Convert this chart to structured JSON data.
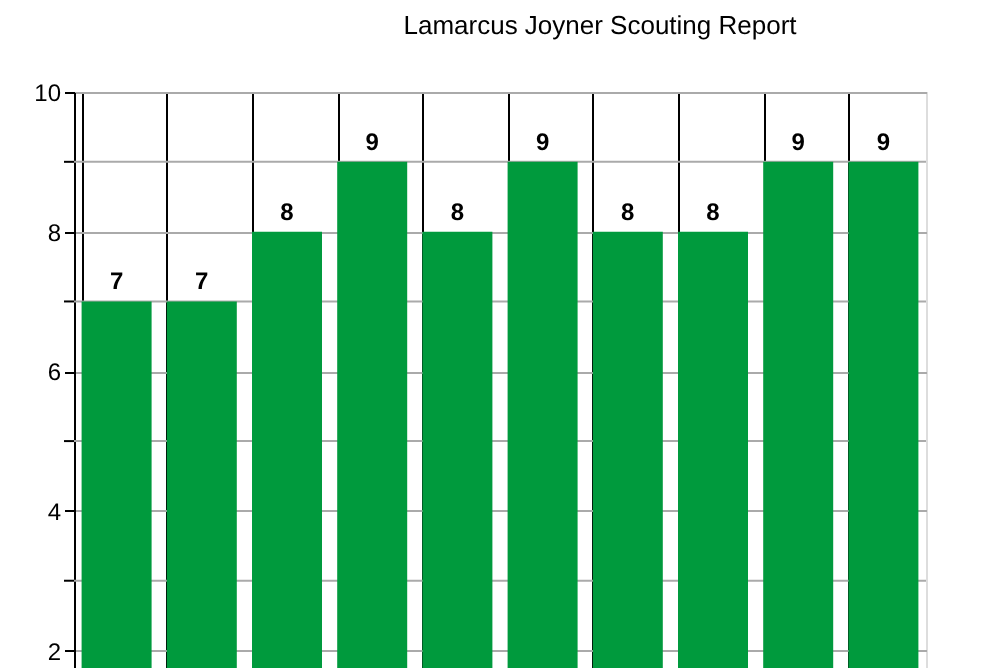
{
  "chart_data": {
    "type": "bar",
    "title": "Lamarcus Joyner Scouting Report",
    "categories": [
      null,
      null,
      null,
      null,
      null,
      null,
      null,
      null,
      null,
      null
    ],
    "values": [
      7,
      7,
      8,
      9,
      8,
      9,
      8,
      8,
      9,
      9
    ],
    "color": "#009a3d",
    "ylim": [
      1.75,
      10
    ],
    "yticks": [
      2,
      {
        "value": 3,
        "label": null
      },
      4,
      {
        "value": 5,
        "label": null
      },
      6,
      {
        "value": 7,
        "label": null
      },
      8,
      {
        "value": 9,
        "label": null
      },
      10
    ],
    "grid": true,
    "data_labels": true
  }
}
